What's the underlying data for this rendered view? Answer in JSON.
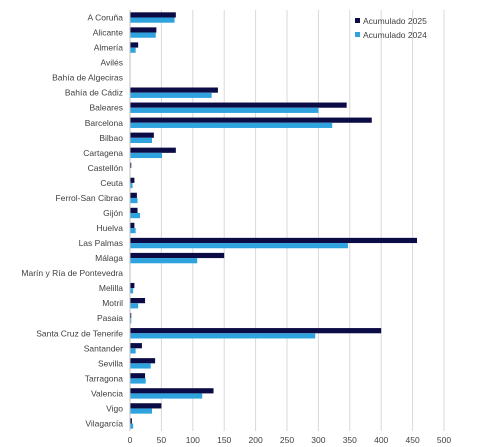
{
  "chart_data": {
    "type": "bar",
    "orientation": "horizontal",
    "categories": [
      "A Coruña",
      "Alicante",
      "Almería",
      "Avilés",
      "Bahía de Algeciras",
      "Bahía de Cádiz",
      "Baleares",
      "Barcelona",
      "Bilbao",
      "Cartagena",
      "Castellón",
      "Ceuta",
      "Ferrol-San Cibrao",
      "Gijón",
      "Huelva",
      "Las Palmas",
      "Málaga",
      "Marín y Ría de Pontevedra",
      "Melilla",
      "Motril",
      "Pasaia",
      "Santa Cruz de Tenerife",
      "Santander",
      "Sevilla",
      "Tarragona",
      "Valencia",
      "Vigo",
      "Vilagarcía"
    ],
    "series": [
      {
        "name": "Acumulado 2025",
        "color": "#0b0c45",
        "values": [
          73,
          42,
          13,
          0,
          0,
          140,
          345,
          385,
          38,
          73,
          2,
          7,
          11,
          12,
          7,
          457,
          150,
          0,
          7,
          24,
          2,
          400,
          19,
          40,
          24,
          133,
          50,
          3
        ]
      },
      {
        "name": "Acumulado 2024",
        "color": "#2fa3dd",
        "values": [
          71,
          41,
          9,
          0,
          0,
          130,
          300,
          322,
          35,
          51,
          0,
          4,
          12,
          16,
          9,
          347,
          107,
          0,
          5,
          13,
          2,
          295,
          9,
          33,
          25,
          115,
          35,
          5
        ]
      }
    ],
    "xlim": [
      0,
      500
    ],
    "xticks": [
      0,
      50,
      100,
      150,
      200,
      250,
      300,
      350,
      400,
      450,
      500
    ],
    "grid": "vertical",
    "legend": "top-right",
    "title": "",
    "xlabel": "",
    "ylabel": ""
  }
}
